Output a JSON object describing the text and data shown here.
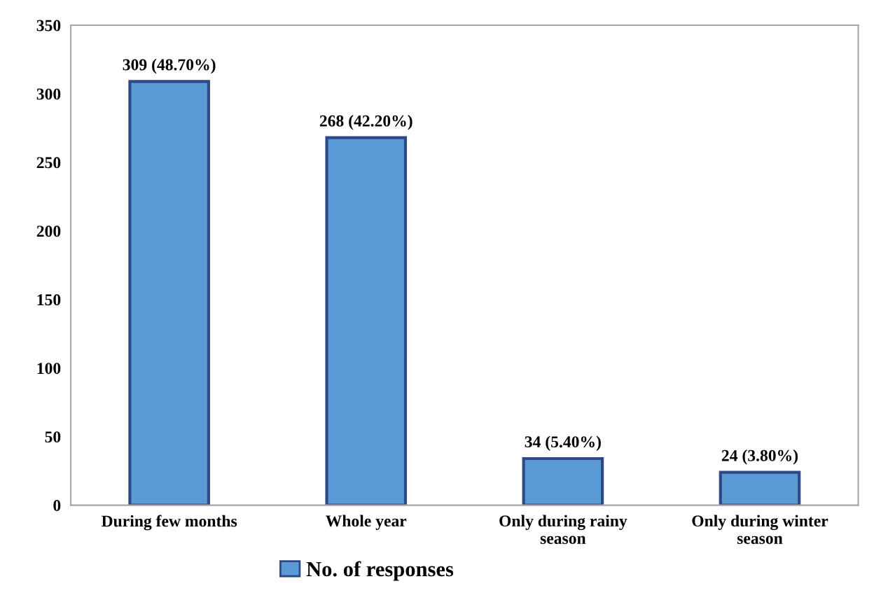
{
  "chart_data": {
    "type": "bar",
    "categories": [
      "During few months",
      "Whole year",
      "Only during rainy\nseason",
      "Only during winter\nseason"
    ],
    "series": [
      {
        "name": "No. of responses",
        "color": "#5b9bd5",
        "values": [
          309,
          268,
          34,
          24
        ],
        "value_labels": [
          "309 (48.70%)",
          "268 (42.20%)",
          "34 (5.40%)",
          "24 (3.80%)"
        ]
      }
    ],
    "ylim": [
      0,
      350
    ],
    "yticks": [
      0,
      50,
      100,
      150,
      200,
      250,
      300,
      350
    ],
    "grid": false,
    "legend": "bottom"
  }
}
